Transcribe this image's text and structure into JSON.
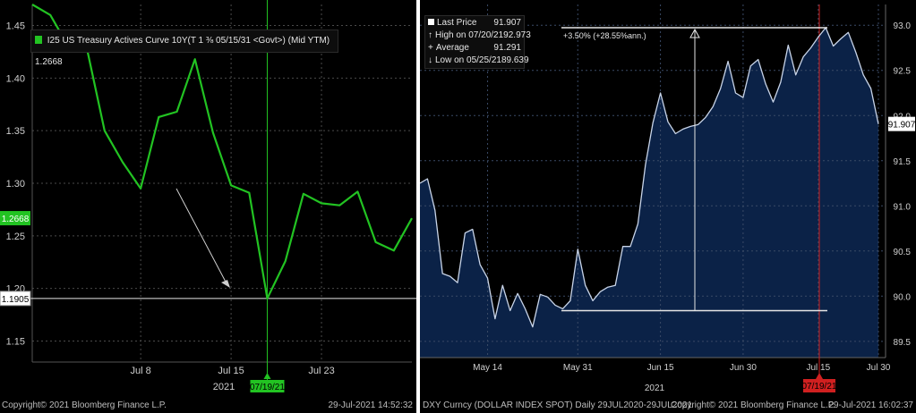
{
  "left": {
    "legend": "I25 US Treasury Actives Curve 10Y(T 1 ⅜ 05/15/31 <Govt>) (Mid YTM) 1.2668",
    "current_label": "1.2668",
    "low_label": "1.1905",
    "date_marker": "07/19/21",
    "year_label": "2021",
    "footer_left": "Copyright© 2021 Bloomberg Finance L.P.",
    "footer_right": "29-Jul-2021 14:52:32",
    "colors": {
      "line": "#22c322",
      "marker": "#22c322",
      "current": "#22c322"
    }
  },
  "right": {
    "stats": {
      "last_price_label": "Last Price",
      "last_price_value": "91.907",
      "high_label": "High on 07/20/21",
      "high_value": "92.973",
      "average_label": "Average",
      "average_value": "91.291",
      "low_label": "Low on 05/25/21",
      "low_value": "89.639"
    },
    "change_annotation": "+3.50% (+28.55%ann.)",
    "current_label": "91.907",
    "date_marker": "07/19/21",
    "year_label": "2021",
    "footer_left": "DXY Curncy (DOLLAR INDEX SPOT)  Daily 29JUL2020-29JUL2021",
    "footer_center": "Copyright© 2021 Bloomberg Finance L.P.",
    "footer_right": "29-Jul-2021 16:02:37",
    "colors": {
      "area": "#0b2247",
      "line": "#c8d4e8",
      "marker": "#d02020"
    }
  },
  "chart_data": [
    {
      "type": "line",
      "ylim": [
        1.13,
        1.47
      ],
      "yticks": [
        1.15,
        1.2,
        1.25,
        1.3,
        1.35,
        1.4,
        1.45
      ],
      "xticks": [
        "Jul 8",
        "Jul 15",
        "Jul 23"
      ],
      "series": [
        {
          "name": "I25 US Treasury Actives Curve 10Y",
          "values": [
            1.47,
            1.46,
            1.43,
            1.43,
            1.35,
            1.32,
            1.295,
            1.363,
            1.368,
            1.418,
            1.348,
            1.298,
            1.291,
            1.1905,
            1.226,
            1.29,
            1.281,
            1.279,
            1.292,
            1.244,
            1.236,
            1.2668
          ]
        }
      ]
    },
    {
      "type": "area",
      "ylim": [
        89.32,
        93.23
      ],
      "yticks": [
        89.5,
        90.0,
        90.5,
        91.0,
        91.5,
        92.0,
        92.5,
        93.0
      ],
      "xticks": [
        "May 14",
        "May 31",
        "Jun 15",
        "Jun 30",
        "Jul 15",
        "Jul 30"
      ],
      "series": [
        {
          "name": "DXY Curncy (DOLLAR INDEX SPOT)",
          "values": [
            91.25,
            91.3,
            90.95,
            90.25,
            90.22,
            90.15,
            90.7,
            90.74,
            90.35,
            90.2,
            89.75,
            90.12,
            89.84,
            90.03,
            89.86,
            89.66,
            90.02,
            89.99,
            89.9,
            89.86,
            89.95,
            90.52,
            90.12,
            89.95,
            90.05,
            90.1,
            90.12,
            90.55,
            90.55,
            90.8,
            91.45,
            91.92,
            92.25,
            91.93,
            91.8,
            91.85,
            91.88,
            91.9,
            91.98,
            92.1,
            92.3,
            92.6,
            92.25,
            92.2,
            92.55,
            92.62,
            92.35,
            92.15,
            92.37,
            92.78,
            92.45,
            92.65,
            92.75,
            92.87,
            92.973,
            92.77,
            92.85,
            92.92,
            92.7,
            92.45,
            92.3,
            91.907
          ]
        }
      ]
    }
  ]
}
